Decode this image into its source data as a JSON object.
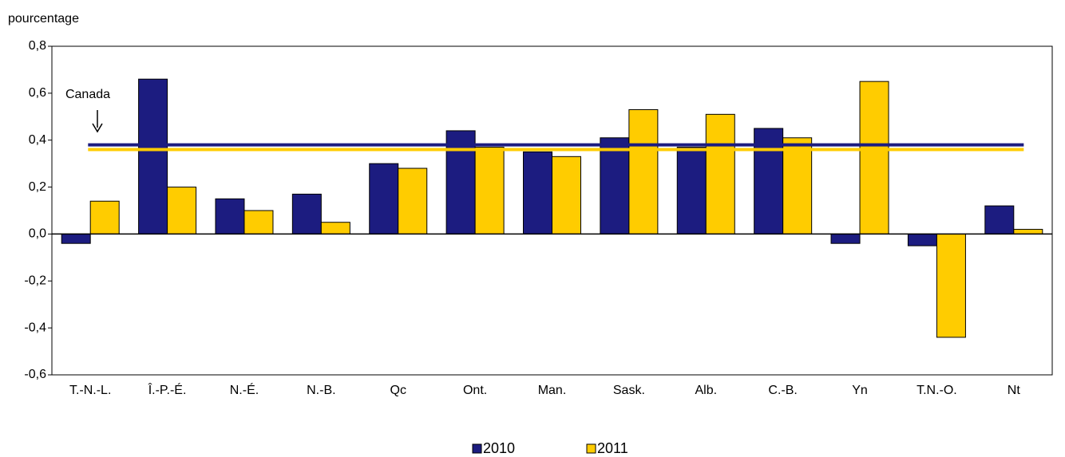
{
  "chart_data": {
    "type": "bar",
    "y_label": "pourcentage",
    "annotation": "Canada",
    "categories": [
      "T.-N.-L.",
      "Î.-P.-É.",
      "N.-É.",
      "N.-B.",
      "Qc",
      "Ont.",
      "Man.",
      "Sask.",
      "Alb.",
      "C.-B.",
      "Yn",
      "T.N.-O.",
      "Nt"
    ],
    "series": [
      {
        "name": "2010",
        "color": "#1c1c80",
        "values": [
          -0.04,
          0.66,
          0.15,
          0.17,
          0.3,
          0.44,
          0.35,
          0.41,
          0.37,
          0.45,
          -0.04,
          -0.05,
          0.12
        ],
        "canada": 0.38
      },
      {
        "name": "2011",
        "color": "#ffcc00",
        "values": [
          0.14,
          0.2,
          0.1,
          0.05,
          0.28,
          0.37,
          0.33,
          0.53,
          0.51,
          0.41,
          0.65,
          -0.44,
          0.02
        ],
        "canada": 0.36
      }
    ],
    "ylim": [
      -0.6,
      0.8
    ],
    "yticks": [
      {
        "value": -0.6,
        "label": "-0,6"
      },
      {
        "value": -0.4,
        "label": "-0,4"
      },
      {
        "value": -0.2,
        "label": "-0,2"
      },
      {
        "value": 0,
        "label": "0,0"
      },
      {
        "value": 0.2,
        "label": "0,2"
      },
      {
        "value": 0.4,
        "label": "0,4"
      },
      {
        "value": 0.6,
        "label": "0,6"
      },
      {
        "value": 0.8,
        "label": "0,8"
      }
    ],
    "grid": false,
    "legend": "bottom"
  }
}
